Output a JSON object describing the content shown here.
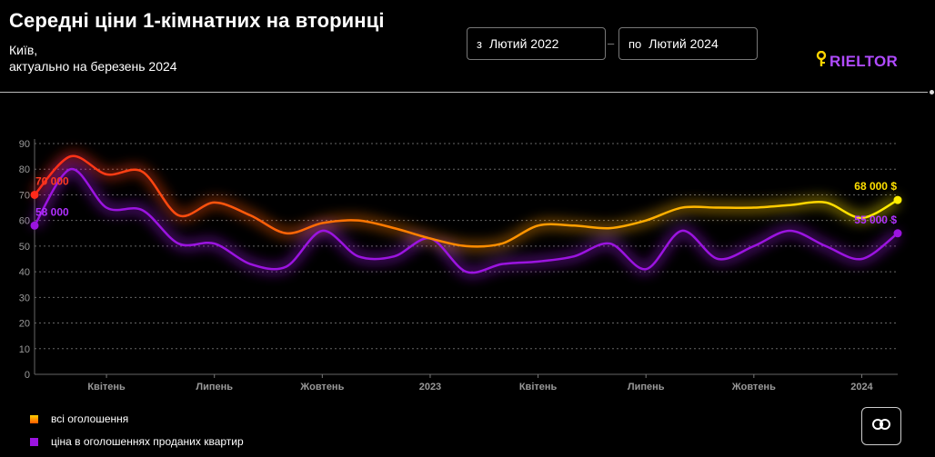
{
  "header": {
    "title": "Середні ціни 1-кімнатних на вторинці",
    "city": "Київ,",
    "updated": "актуально на березень 2024"
  },
  "date_from": {
    "prefix": "з",
    "value": "Лютий 2022"
  },
  "date_to": {
    "prefix": "по",
    "value": "Лютий 2024"
  },
  "logo": {
    "text": "RIELTOR",
    "icon": "key-icon",
    "color": "#b04bff"
  },
  "legend": {
    "all": {
      "label": "всі оголошення",
      "color": "#ff8a00"
    },
    "sold": {
      "label": "ціна в оголошеннях проданих квартир",
      "color": "#9b14e0"
    }
  },
  "share_button": {
    "icon": "link-icon"
  },
  "chart_data": {
    "type": "line",
    "x": [
      "2022-02",
      "2022-03",
      "2022-04",
      "2022-05",
      "2022-06",
      "2022-07",
      "2022-08",
      "2022-09",
      "2022-10",
      "2022-11",
      "2022-12",
      "2023-01",
      "2023-02",
      "2023-03",
      "2023-04",
      "2023-05",
      "2023-06",
      "2023-07",
      "2023-08",
      "2023-09",
      "2023-10",
      "2023-11",
      "2023-12",
      "2024-01",
      "2024-02"
    ],
    "xticks": [
      "Квітень",
      "Липень",
      "Жовтень",
      "2023",
      "Квітень",
      "Липень",
      "Жовтень",
      "2024"
    ],
    "ylim": [
      0,
      90
    ],
    "yticks": [
      0,
      10,
      20,
      30,
      40,
      50,
      60,
      70,
      80,
      90
    ],
    "grid": true,
    "series": [
      {
        "name": "всі оголошення",
        "values": [
          70,
          85,
          78,
          79,
          62,
          67,
          62,
          55,
          59,
          60,
          57,
          53,
          50,
          51,
          58,
          58,
          57,
          60,
          65,
          65,
          65,
          66,
          67,
          61,
          68
        ],
        "start_label": "70 000",
        "end_label": "68 000 $"
      },
      {
        "name": "ціна в оголошеннях проданих квартир",
        "values": [
          58,
          80,
          65,
          64,
          51,
          51,
          43,
          42,
          56,
          46,
          46,
          53,
          40,
          43,
          44,
          46,
          51,
          41,
          56,
          45,
          50,
          56,
          50,
          45,
          55
        ],
        "start_label": "58 000",
        "end_label": "55 000 $"
      }
    ]
  }
}
